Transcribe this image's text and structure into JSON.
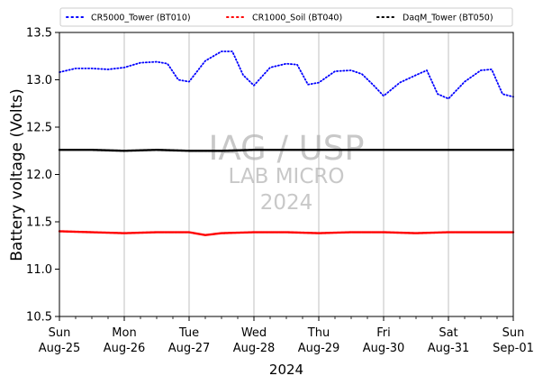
{
  "chart_data": {
    "type": "line",
    "title": "",
    "xlabel": "2024",
    "ylabel": "Battery voltage (Volts)",
    "ylim": [
      10.5,
      13.5
    ],
    "y_ticks": [
      10.5,
      11.0,
      11.5,
      12.0,
      12.5,
      13.0,
      13.5
    ],
    "y_tick_labels": [
      "10.5",
      "11.0",
      "11.5",
      "12.0",
      "12.5",
      "13.0",
      "13.5"
    ],
    "xlim": [
      "2024-08-25",
      "2024-09-01"
    ],
    "x_ticks": [
      {
        "date": "2024-08-25",
        "day": "Sun",
        "date_label": "Aug-25"
      },
      {
        "date": "2024-08-26",
        "day": "Mon",
        "date_label": "Aug-26"
      },
      {
        "date": "2024-08-27",
        "day": "Tue",
        "date_label": "Aug-27"
      },
      {
        "date": "2024-08-28",
        "day": "Wed",
        "date_label": "Aug-28"
      },
      {
        "date": "2024-08-29",
        "day": "Thu",
        "date_label": "Aug-29"
      },
      {
        "date": "2024-08-30",
        "day": "Fri",
        "date_label": "Aug-30"
      },
      {
        "date": "2024-08-31",
        "day": "Sat",
        "date_label": "Aug-31"
      },
      {
        "date": "2024-09-01",
        "day": "Sun",
        "date_label": "Sep-01"
      }
    ],
    "grid": "vertical-major",
    "legend_position": "top",
    "series": [
      {
        "name": "CR5000_Tower (BT010)",
        "color": "#0000ff",
        "x": [
          "2024-08-25 00:00",
          "2024-08-25 06:00",
          "2024-08-25 12:00",
          "2024-08-25 18:00",
          "2024-08-26 00:00",
          "2024-08-26 06:00",
          "2024-08-26 12:00",
          "2024-08-26 16:00",
          "2024-08-26 20:00",
          "2024-08-27 00:00",
          "2024-08-27 06:00",
          "2024-08-27 12:00",
          "2024-08-27 16:00",
          "2024-08-27 20:00",
          "2024-08-28 00:00",
          "2024-08-28 06:00",
          "2024-08-28 12:00",
          "2024-08-28 16:00",
          "2024-08-28 20:00",
          "2024-08-29 00:00",
          "2024-08-29 06:00",
          "2024-08-29 12:00",
          "2024-08-29 16:00",
          "2024-08-29 20:00",
          "2024-08-30 00:00",
          "2024-08-30 06:00",
          "2024-08-30 12:00",
          "2024-08-30 16:00",
          "2024-08-30 20:00",
          "2024-08-31 00:00",
          "2024-08-31 06:00",
          "2024-08-31 12:00",
          "2024-08-31 16:00",
          "2024-08-31 20:00",
          "2024-09-01 00:00"
        ],
        "values": [
          13.08,
          13.12,
          13.12,
          13.11,
          13.13,
          13.18,
          13.19,
          13.17,
          13.0,
          12.98,
          13.2,
          13.3,
          13.3,
          13.05,
          12.94,
          13.13,
          13.17,
          13.16,
          12.95,
          12.97,
          13.09,
          13.1,
          13.06,
          12.95,
          12.83,
          12.97,
          13.05,
          13.1,
          12.85,
          12.8,
          12.98,
          13.1,
          13.11,
          12.85,
          12.82
        ]
      },
      {
        "name": "CR1000_Soil (BT040)",
        "color": "#ff0000",
        "x": [
          "2024-08-25 00:00",
          "2024-08-25 12:00",
          "2024-08-26 00:00",
          "2024-08-26 12:00",
          "2024-08-27 00:00",
          "2024-08-27 06:00",
          "2024-08-27 12:00",
          "2024-08-28 00:00",
          "2024-08-28 12:00",
          "2024-08-29 00:00",
          "2024-08-29 12:00",
          "2024-08-30 00:00",
          "2024-08-30 12:00",
          "2024-08-31 00:00",
          "2024-08-31 12:00",
          "2024-09-01 00:00"
        ],
        "values": [
          11.4,
          11.39,
          11.38,
          11.39,
          11.39,
          11.36,
          11.38,
          11.39,
          11.39,
          11.38,
          11.39,
          11.39,
          11.38,
          11.39,
          11.39,
          11.39
        ]
      },
      {
        "name": "DaqM_Tower (BT050)",
        "color": "#000000",
        "x": [
          "2024-08-25 00:00",
          "2024-08-25 12:00",
          "2024-08-26 00:00",
          "2024-08-26 12:00",
          "2024-08-27 00:00",
          "2024-08-27 12:00",
          "2024-08-28 00:00",
          "2024-08-28 12:00",
          "2024-08-29 00:00",
          "2024-08-29 12:00",
          "2024-08-30 00:00",
          "2024-08-30 12:00",
          "2024-08-31 00:00",
          "2024-08-31 12:00",
          "2024-09-01 00:00"
        ],
        "values": [
          12.26,
          12.26,
          12.25,
          12.26,
          12.25,
          12.25,
          12.26,
          12.26,
          12.26,
          12.26,
          12.26,
          12.26,
          12.26,
          12.26,
          12.26
        ]
      }
    ],
    "watermark": [
      "IAG / USP",
      "LAB MICRO",
      "2024"
    ]
  }
}
